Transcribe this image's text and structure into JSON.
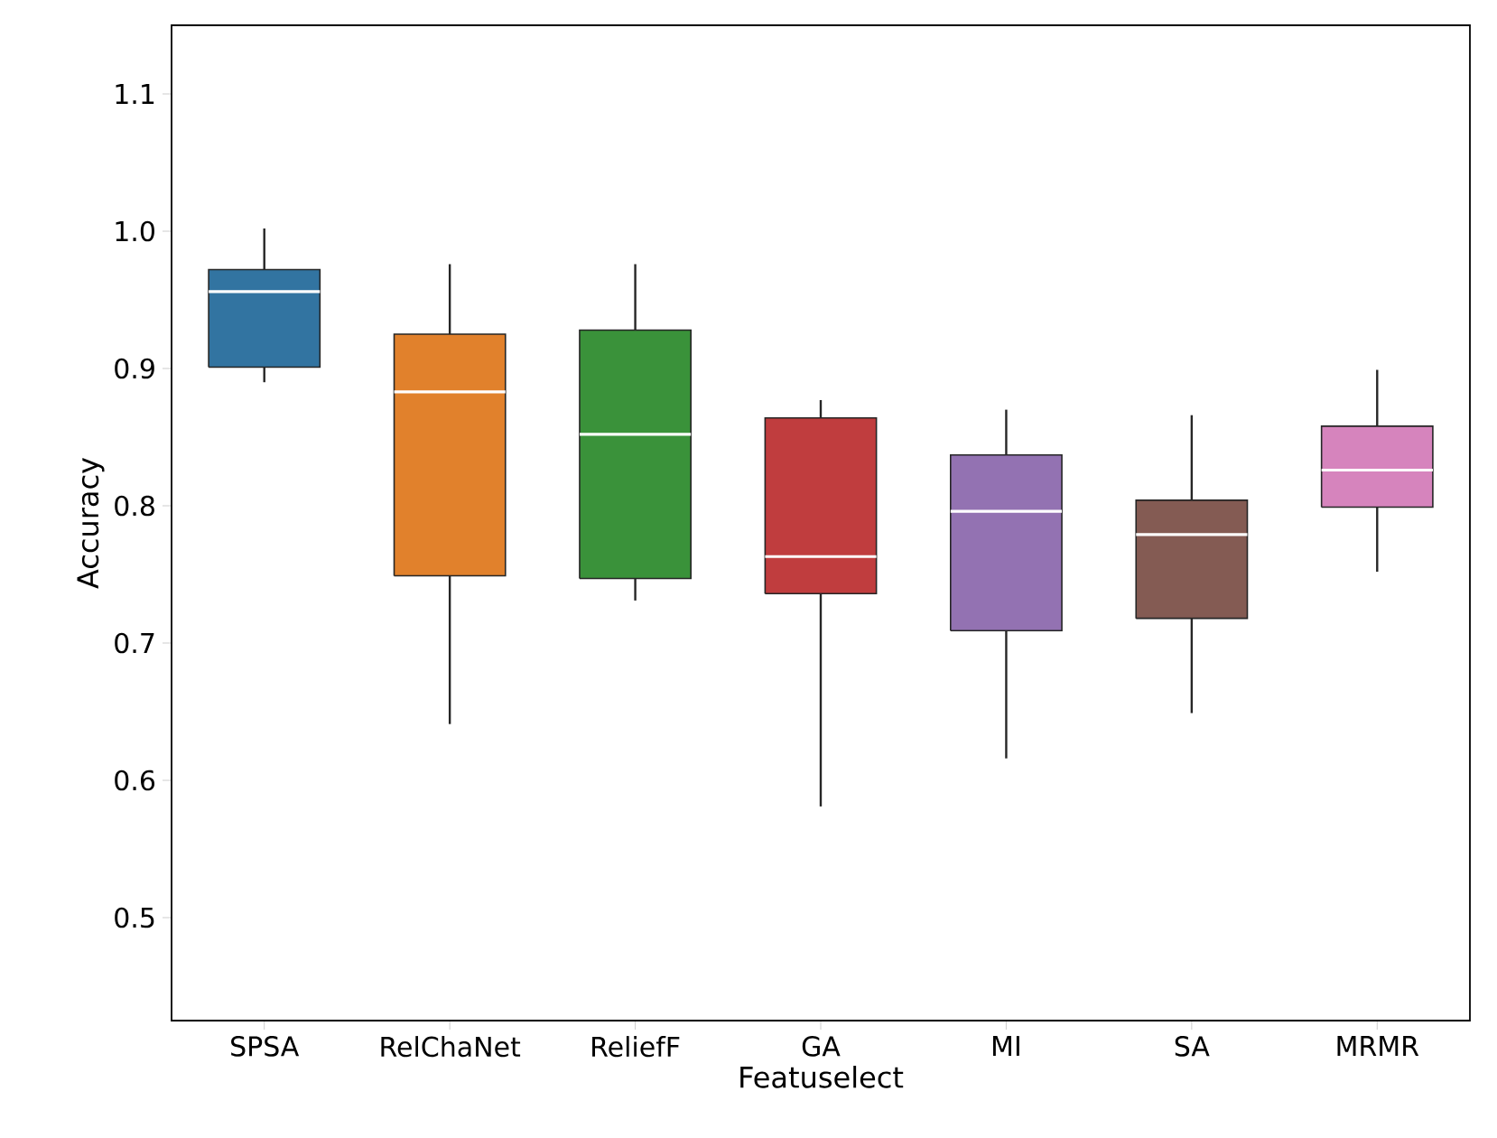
{
  "chart_data": {
    "type": "box",
    "xlabel": "Featuselect",
    "ylabel": "Accuracy",
    "categories": [
      "SPSA",
      "RelChaNet",
      "ReliefF",
      "GA",
      "MI",
      "SA",
      "MRMR"
    ],
    "colors": [
      "#3274a1",
      "#e1812c",
      "#3a923a",
      "#c03d3e",
      "#9372b2",
      "#845b53",
      "#d684bd"
    ],
    "boxes": [
      {
        "low": 0.89,
        "q1": 0.901,
        "median": 0.956,
        "q3": 0.972,
        "high": 1.002
      },
      {
        "low": 0.641,
        "q1": 0.749,
        "median": 0.883,
        "q3": 0.925,
        "high": 0.976
      },
      {
        "low": 0.731,
        "q1": 0.747,
        "median": 0.852,
        "q3": 0.928,
        "high": 0.976
      },
      {
        "low": 0.581,
        "q1": 0.736,
        "median": 0.763,
        "q3": 0.864,
        "high": 0.877
      },
      {
        "low": 0.616,
        "q1": 0.709,
        "median": 0.796,
        "q3": 0.837,
        "high": 0.87
      },
      {
        "low": 0.649,
        "q1": 0.718,
        "median": 0.779,
        "q3": 0.804,
        "high": 0.866
      },
      {
        "low": 0.752,
        "q1": 0.799,
        "median": 0.826,
        "q3": 0.858,
        "high": 0.899
      }
    ],
    "ylim": [
      0.425,
      1.15
    ],
    "yticks": [
      0.5,
      0.6,
      0.7,
      0.8,
      0.9,
      {
        "value": 1.0,
        "label": "1.0"
      },
      1.1
    ]
  }
}
